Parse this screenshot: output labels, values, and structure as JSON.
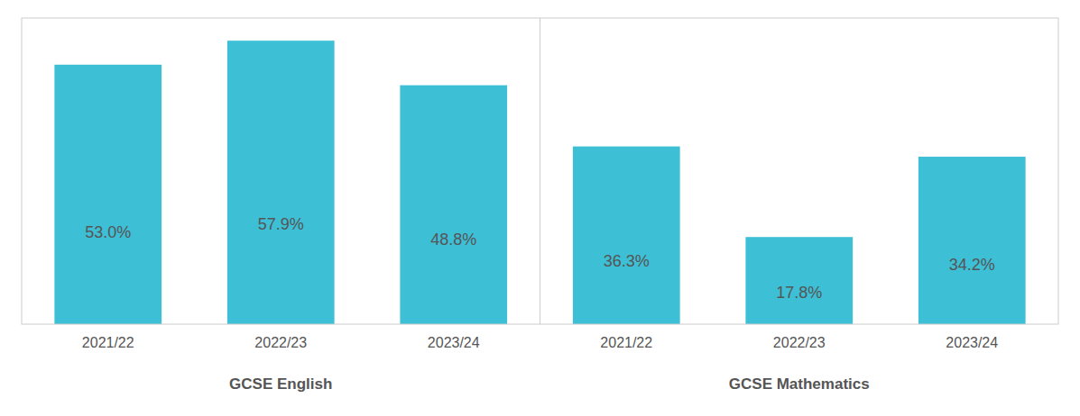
{
  "chart_data": [
    {
      "type": "bar",
      "xlabel": "GCSE English",
      "categories": [
        "2021/22",
        "2022/23",
        "2023/24"
      ],
      "values": [
        53.0,
        57.9,
        48.8
      ],
      "value_labels": [
        "53.0%",
        "57.9%",
        "48.8%"
      ],
      "color": "#3dbfd5",
      "ylim": [
        0,
        62.532
      ],
      "tick_labels": "x",
      "data_labels": true,
      "grid": false
    },
    {
      "type": "bar",
      "xlabel": "GCSE Mathematics",
      "categories": [
        "2021/22",
        "2022/23",
        "2023/24"
      ],
      "values": [
        36.3,
        17.8,
        34.2
      ],
      "value_labels": [
        "36.3%",
        "17.8%",
        "34.2%"
      ],
      "color": "#3dbfd5",
      "ylim": [
        0,
        62.532
      ],
      "tick_labels": "x",
      "data_labels": true,
      "grid": false
    }
  ]
}
